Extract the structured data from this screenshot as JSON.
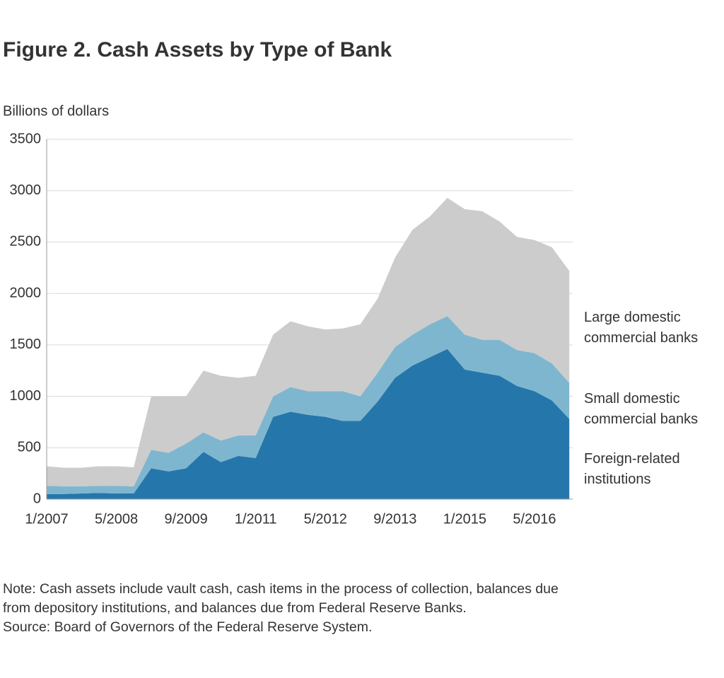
{
  "chart_data": {
    "type": "stacked_area",
    "title": "Figure 2. Cash Assets by Type of Bank",
    "y_label": "Billions of dollars",
    "categories": [
      "1/2007",
      null,
      null,
      null,
      "5/2008",
      null,
      null,
      null,
      "9/2009",
      null,
      null,
      null,
      "1/2011",
      null,
      null,
      null,
      "5/2012",
      null,
      null,
      null,
      "9/2013",
      null,
      null,
      null,
      "1/2015",
      null,
      null,
      null,
      "5/2016",
      null,
      null
    ],
    "series": [
      {
        "name": "Foreign-related institutions",
        "color": "#2577ab",
        "values": [
          50,
          50,
          55,
          60,
          55,
          55,
          300,
          270,
          300,
          460,
          360,
          420,
          400,
          800,
          850,
          820,
          800,
          760,
          760,
          950,
          1180,
          1300,
          1380,
          1460,
          1260,
          1230,
          1200,
          1100,
          1050,
          960,
          780
        ]
      },
      {
        "name": "Small domestic commercial banks",
        "color": "#7fb6cf",
        "values": [
          80,
          75,
          70,
          70,
          75,
          70,
          180,
          180,
          240,
          190,
          210,
          200,
          220,
          200,
          240,
          230,
          250,
          290,
          240,
          280,
          300,
          300,
          320,
          320,
          340,
          320,
          350,
          350,
          370,
          360,
          350
        ]
      },
      {
        "name": "Large domestic commercial banks",
        "color": "#cccccc",
        "values": [
          190,
          180,
          180,
          190,
          190,
          185,
          520,
          550,
          460,
          600,
          630,
          560,
          580,
          600,
          640,
          630,
          600,
          610,
          700,
          720,
          870,
          1020,
          1050,
          1150,
          1220,
          1250,
          1150,
          1100,
          1100,
          1130,
          1090
        ]
      }
    ],
    "ylim": [
      0,
      3500
    ],
    "yticks": [
      0,
      500,
      1000,
      1500,
      2000,
      2500,
      3000,
      3500
    ],
    "grid": true,
    "notes": [
      "Note: Cash assets include vault cash, cash items in the process of collection, balances due",
      "from depository institutions, and balances due from Federal Reserve Banks.",
      "Source: Board of Governors of the Federal Reserve System."
    ]
  }
}
